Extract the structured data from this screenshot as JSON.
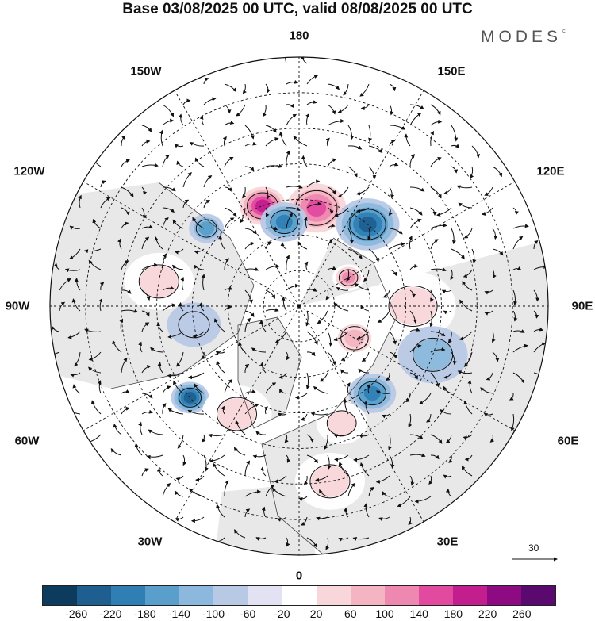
{
  "title": "Base 03/08/2025 00 UTC, valid 08/08/2025 00 UTC",
  "brand": "MODES",
  "brand_mark": "©",
  "longitude_labels": {
    "lon_180": "180",
    "lon_150W": "150W",
    "lon_150E": "150E",
    "lon_120W": "120W",
    "lon_120E": "120E",
    "lon_90W": "90W",
    "lon_90E": "90E",
    "lon_60W": "60W",
    "lon_60E": "60E",
    "lon_30W": "30W",
    "lon_30E": "30E",
    "lon_0": "0"
  },
  "reference_vector": "30",
  "colorbar": {
    "colors": [
      "#0d3b5e",
      "#1f5f8f",
      "#2f7fb5",
      "#5a9fcc",
      "#8bb8dc",
      "#b8c9e6",
      "#e2e2f2",
      "#ffffff",
      "#f9d6da",
      "#f4b4c2",
      "#ee88b0",
      "#e24aa0",
      "#c21e8e",
      "#8e0a82",
      "#5a0a6e"
    ],
    "ticks": [
      "-260",
      "-220",
      "-180",
      "-140",
      "-100",
      "-60",
      "-20",
      "20",
      "60",
      "100",
      "140",
      "180",
      "220",
      "260"
    ]
  },
  "anomaly_centers": [
    {
      "lon": 170,
      "colat": 28,
      "value": 180,
      "r": 42
    },
    {
      "lon": -160,
      "colat": 30,
      "value": 220,
      "r": 30
    },
    {
      "lon": -170,
      "colat": 24,
      "value": -160,
      "r": 26
    },
    {
      "lon": 140,
      "colat": 30,
      "value": -200,
      "r": 36
    },
    {
      "lon": -130,
      "colat": 34,
      "value": -120,
      "r": 18
    },
    {
      "lon": 120,
      "colat": 16,
      "value": 150,
      "r": 16
    },
    {
      "lon": 60,
      "colat": 18,
      "value": 120,
      "r": 26
    },
    {
      "lon": -50,
      "colat": 40,
      "value": -180,
      "r": 20
    },
    {
      "lon": 40,
      "colat": 32,
      "value": -160,
      "r": 26
    },
    {
      "lon": 20,
      "colat": 35,
      "value": 60,
      "r": 28
    },
    {
      "lon": -30,
      "colat": 35,
      "value": 70,
      "r": 40
    },
    {
      "lon": 90,
      "colat": 32,
      "value": 60,
      "r": 50
    },
    {
      "lon": -100,
      "colat": 40,
      "value": 60,
      "r": 40
    },
    {
      "lon": 70,
      "colat": 40,
      "value": -60,
      "r": 40
    },
    {
      "lon": -80,
      "colat": 30,
      "value": -40,
      "r": 30
    },
    {
      "lon": 10,
      "colat": 50,
      "value": 60,
      "r": 40
    }
  ]
}
